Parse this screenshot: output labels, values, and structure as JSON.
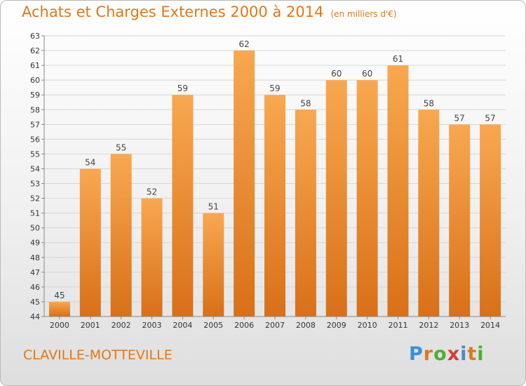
{
  "header": {
    "title": "Achats et Charges Externes 2000 à 2014",
    "unit": "(en milliers d'€)"
  },
  "footer": {
    "city": "CLAVILLE-MOTTEVILLE",
    "logo_text": "Proxiti"
  },
  "colors": {
    "accent": "#e07818",
    "bar_light": "#f8a850",
    "bar_dark": "#d87018",
    "grid": "#d6d6d6"
  },
  "chart_data": {
    "type": "bar",
    "categories": [
      "2000",
      "2001",
      "2002",
      "2003",
      "2004",
      "2005",
      "2006",
      "2007",
      "2008",
      "2009",
      "2010",
      "2011",
      "2012",
      "2013",
      "2014"
    ],
    "values": [
      45,
      54,
      55,
      52,
      59,
      51,
      62,
      59,
      58,
      60,
      60,
      61,
      58,
      57,
      57
    ],
    "ylim": [
      44,
      63
    ],
    "yticks": [
      44,
      45,
      46,
      47,
      48,
      49,
      50,
      51,
      52,
      53,
      54,
      55,
      56,
      57,
      58,
      59,
      60,
      61,
      62,
      63
    ],
    "grid": true,
    "data_labels": true
  }
}
